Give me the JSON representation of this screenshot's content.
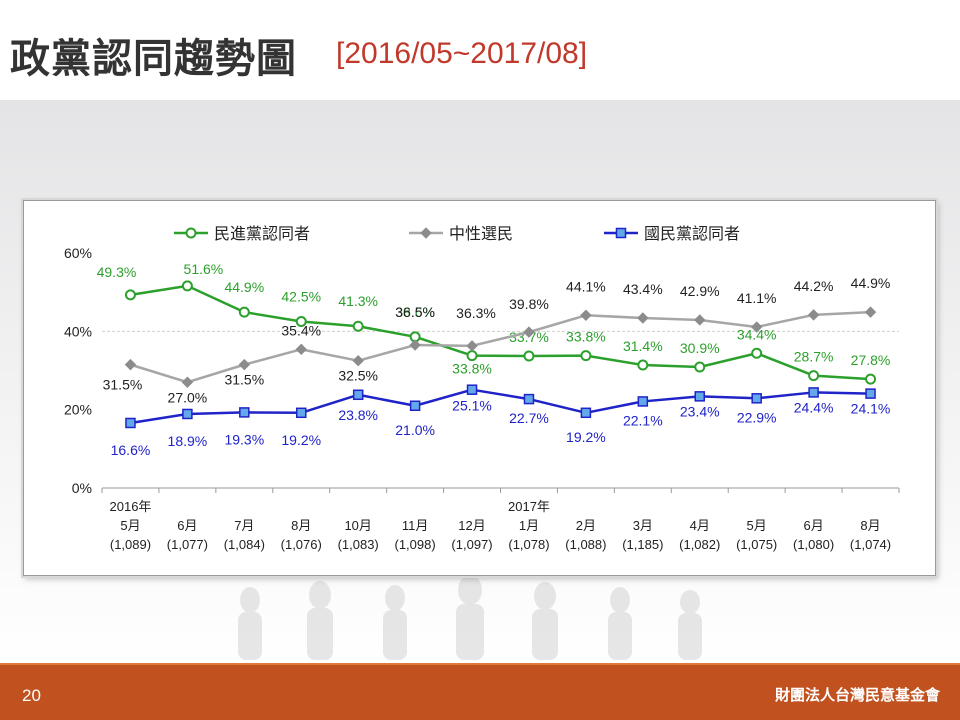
{
  "slide": {
    "title": "政黨認同趨勢圖",
    "subtitle": "[2016/05~2017/08]",
    "page_number": "20",
    "organization": "財團法人台灣民意基金會"
  },
  "colors": {
    "green": "#2ca02c",
    "gray": "#a6a6a6",
    "blue": "#1f23c8",
    "footer": "#c1521f",
    "subtitle": "#c0392b"
  },
  "chart_data": {
    "type": "line",
    "categories": [
      [
        "2016年",
        "5月",
        "(1,089)"
      ],
      [
        "6月",
        "(1,077)"
      ],
      [
        "7月",
        "(1,084)"
      ],
      [
        "8月",
        "(1,076)"
      ],
      [
        "10月",
        "(1,083)"
      ],
      [
        "11月",
        "(1,098)"
      ],
      [
        "12月",
        "(1,097)"
      ],
      [
        "2017年",
        "1月",
        "(1,078)"
      ],
      [
        "2月",
        "(1,088)"
      ],
      [
        "3月",
        "(1,185)"
      ],
      [
        "4月",
        "(1,082)"
      ],
      [
        "5月",
        "(1,075)"
      ],
      [
        "6月",
        "(1,080)"
      ],
      [
        "8月",
        "(1,074)"
      ]
    ],
    "y_ticks": [
      "0%",
      "20%",
      "40%",
      "60%"
    ],
    "ylim": [
      0,
      60
    ],
    "grid": "dashed at 40%",
    "legend_position": "top",
    "series": [
      {
        "name": "民進黨認同者",
        "color": "#2ca02c",
        "marker": "circle",
        "values": [
          49.3,
          51.6,
          44.9,
          42.5,
          41.3,
          38.6,
          33.8,
          33.7,
          33.8,
          31.4,
          30.9,
          34.4,
          28.7,
          27.8
        ],
        "labels": [
          "49.3%",
          "51.6%",
          "44.9%",
          "42.5%",
          "41.3%",
          "38.6%",
          "33.8%",
          "33.7%",
          "33.8%",
          "31.4%",
          "30.9%",
          "34.4%",
          "28.7%",
          "27.8%"
        ]
      },
      {
        "name": "中性選民",
        "color": "#a6a6a6",
        "marker": "diamond",
        "values": [
          31.5,
          27.0,
          31.5,
          35.4,
          32.5,
          36.5,
          36.3,
          39.8,
          44.1,
          43.4,
          42.9,
          41.1,
          44.2,
          44.9
        ],
        "labels": [
          "31.5%",
          "27.0%",
          "31.5%",
          "35.4%",
          "32.5%",
          "36.5%",
          "36.3%",
          "39.8%",
          "44.1%",
          "43.4%",
          "42.9%",
          "41.1%",
          "44.2%",
          "44.9%"
        ]
      },
      {
        "name": "國民黨認同者",
        "color": "#1f23c8",
        "marker": "square",
        "values": [
          16.6,
          18.9,
          19.3,
          19.2,
          23.8,
          21.0,
          25.1,
          22.7,
          19.2,
          22.1,
          23.4,
          22.9,
          24.4,
          24.1
        ],
        "labels": [
          "16.6%",
          "18.9%",
          "19.3%",
          "19.2%",
          "23.8%",
          "21.0%",
          "25.1%",
          "22.7%",
          "19.2%",
          "22.1%",
          "23.4%",
          "22.9%",
          "24.4%",
          "24.1%"
        ]
      }
    ]
  }
}
